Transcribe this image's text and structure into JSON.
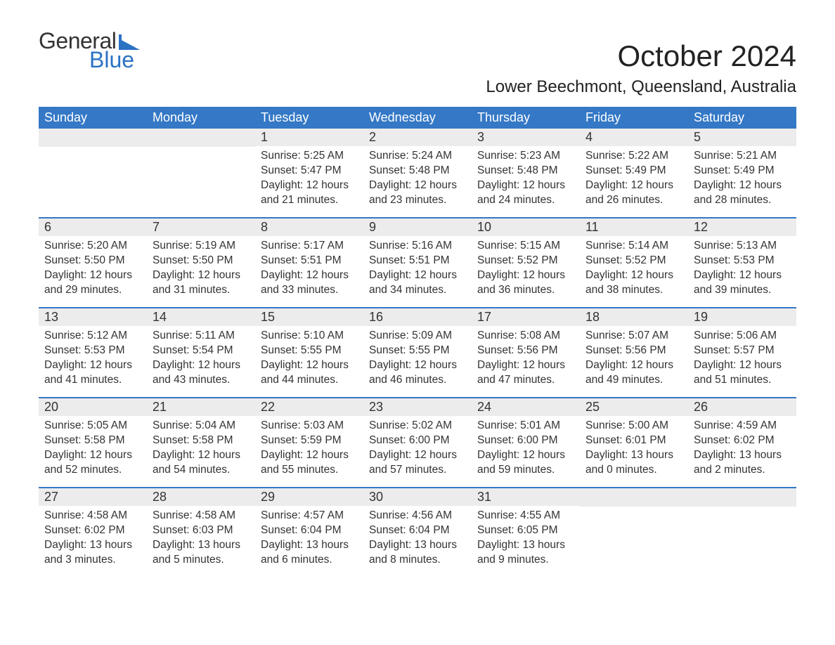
{
  "logo": {
    "word1": "General",
    "word2": "Blue",
    "flag_color": "#2b72c4",
    "text_color": "#333333"
  },
  "title": "October 2024",
  "location": "Lower Beechmont, Queensland, Australia",
  "colors": {
    "header_bg": "#3478c6",
    "header_text": "#ffffff",
    "daynum_bg": "#ececec",
    "row_border": "#3478c6",
    "body_text": "#333333",
    "background": "#ffffff"
  },
  "day_headers": [
    "Sunday",
    "Monday",
    "Tuesday",
    "Wednesday",
    "Thursday",
    "Friday",
    "Saturday"
  ],
  "weeks": [
    [
      null,
      null,
      {
        "n": "1",
        "sunrise": "5:25 AM",
        "sunset": "5:47 PM",
        "daylight": "12 hours and 21 minutes."
      },
      {
        "n": "2",
        "sunrise": "5:24 AM",
        "sunset": "5:48 PM",
        "daylight": "12 hours and 23 minutes."
      },
      {
        "n": "3",
        "sunrise": "5:23 AM",
        "sunset": "5:48 PM",
        "daylight": "12 hours and 24 minutes."
      },
      {
        "n": "4",
        "sunrise": "5:22 AM",
        "sunset": "5:49 PM",
        "daylight": "12 hours and 26 minutes."
      },
      {
        "n": "5",
        "sunrise": "5:21 AM",
        "sunset": "5:49 PM",
        "daylight": "12 hours and 28 minutes."
      }
    ],
    [
      {
        "n": "6",
        "sunrise": "5:20 AM",
        "sunset": "5:50 PM",
        "daylight": "12 hours and 29 minutes."
      },
      {
        "n": "7",
        "sunrise": "5:19 AM",
        "sunset": "5:50 PM",
        "daylight": "12 hours and 31 minutes."
      },
      {
        "n": "8",
        "sunrise": "5:17 AM",
        "sunset": "5:51 PM",
        "daylight": "12 hours and 33 minutes."
      },
      {
        "n": "9",
        "sunrise": "5:16 AM",
        "sunset": "5:51 PM",
        "daylight": "12 hours and 34 minutes."
      },
      {
        "n": "10",
        "sunrise": "5:15 AM",
        "sunset": "5:52 PM",
        "daylight": "12 hours and 36 minutes."
      },
      {
        "n": "11",
        "sunrise": "5:14 AM",
        "sunset": "5:52 PM",
        "daylight": "12 hours and 38 minutes."
      },
      {
        "n": "12",
        "sunrise": "5:13 AM",
        "sunset": "5:53 PM",
        "daylight": "12 hours and 39 minutes."
      }
    ],
    [
      {
        "n": "13",
        "sunrise": "5:12 AM",
        "sunset": "5:53 PM",
        "daylight": "12 hours and 41 minutes."
      },
      {
        "n": "14",
        "sunrise": "5:11 AM",
        "sunset": "5:54 PM",
        "daylight": "12 hours and 43 minutes."
      },
      {
        "n": "15",
        "sunrise": "5:10 AM",
        "sunset": "5:55 PM",
        "daylight": "12 hours and 44 minutes."
      },
      {
        "n": "16",
        "sunrise": "5:09 AM",
        "sunset": "5:55 PM",
        "daylight": "12 hours and 46 minutes."
      },
      {
        "n": "17",
        "sunrise": "5:08 AM",
        "sunset": "5:56 PM",
        "daylight": "12 hours and 47 minutes."
      },
      {
        "n": "18",
        "sunrise": "5:07 AM",
        "sunset": "5:56 PM",
        "daylight": "12 hours and 49 minutes."
      },
      {
        "n": "19",
        "sunrise": "5:06 AM",
        "sunset": "5:57 PM",
        "daylight": "12 hours and 51 minutes."
      }
    ],
    [
      {
        "n": "20",
        "sunrise": "5:05 AM",
        "sunset": "5:58 PM",
        "daylight": "12 hours and 52 minutes."
      },
      {
        "n": "21",
        "sunrise": "5:04 AM",
        "sunset": "5:58 PM",
        "daylight": "12 hours and 54 minutes."
      },
      {
        "n": "22",
        "sunrise": "5:03 AM",
        "sunset": "5:59 PM",
        "daylight": "12 hours and 55 minutes."
      },
      {
        "n": "23",
        "sunrise": "5:02 AM",
        "sunset": "6:00 PM",
        "daylight": "12 hours and 57 minutes."
      },
      {
        "n": "24",
        "sunrise": "5:01 AM",
        "sunset": "6:00 PM",
        "daylight": "12 hours and 59 minutes."
      },
      {
        "n": "25",
        "sunrise": "5:00 AM",
        "sunset": "6:01 PM",
        "daylight": "13 hours and 0 minutes."
      },
      {
        "n": "26",
        "sunrise": "4:59 AM",
        "sunset": "6:02 PM",
        "daylight": "13 hours and 2 minutes."
      }
    ],
    [
      {
        "n": "27",
        "sunrise": "4:58 AM",
        "sunset": "6:02 PM",
        "daylight": "13 hours and 3 minutes."
      },
      {
        "n": "28",
        "sunrise": "4:58 AM",
        "sunset": "6:03 PM",
        "daylight": "13 hours and 5 minutes."
      },
      {
        "n": "29",
        "sunrise": "4:57 AM",
        "sunset": "6:04 PM",
        "daylight": "13 hours and 6 minutes."
      },
      {
        "n": "30",
        "sunrise": "4:56 AM",
        "sunset": "6:04 PM",
        "daylight": "13 hours and 8 minutes."
      },
      {
        "n": "31",
        "sunrise": "4:55 AM",
        "sunset": "6:05 PM",
        "daylight": "13 hours and 9 minutes."
      },
      null,
      null
    ]
  ],
  "labels": {
    "sunrise": "Sunrise: ",
    "sunset": "Sunset: ",
    "daylight": "Daylight: "
  }
}
